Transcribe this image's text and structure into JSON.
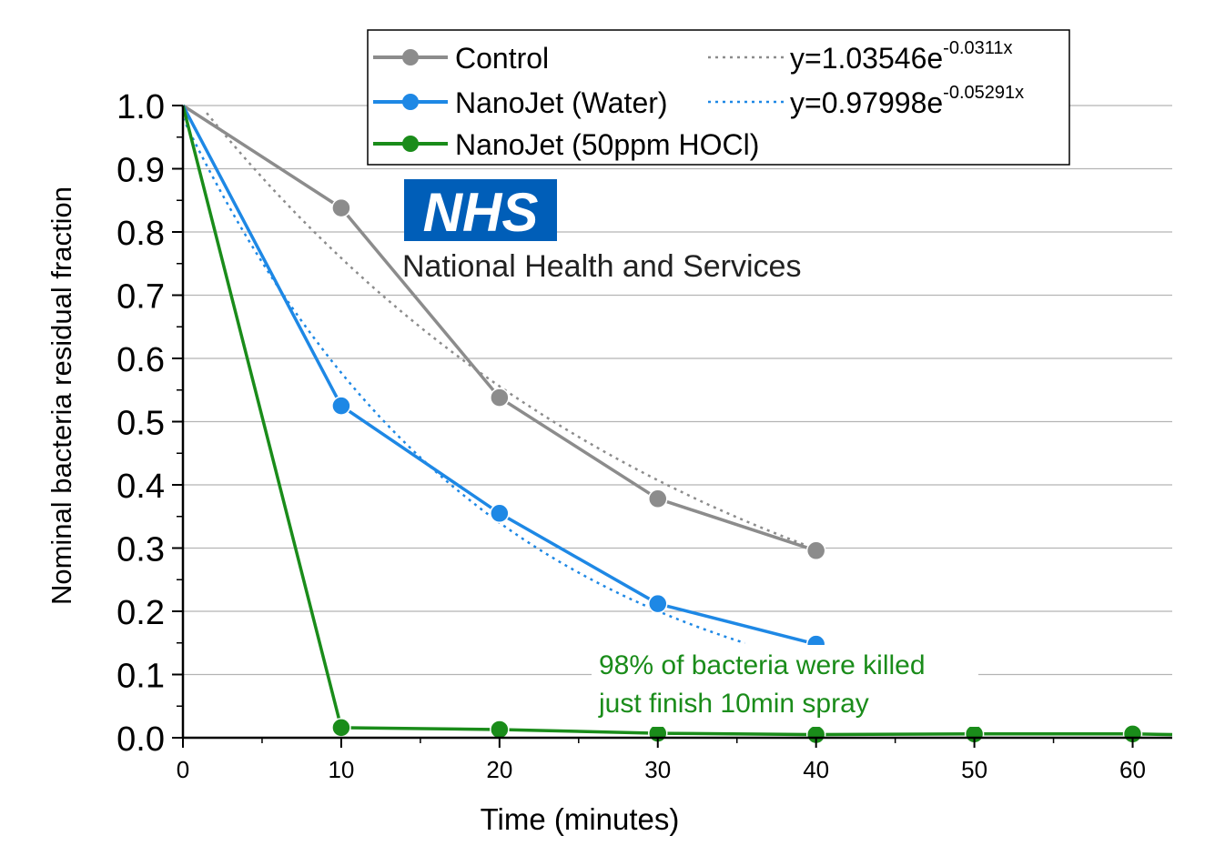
{
  "chart_data": {
    "type": "line",
    "xlabel": "Time (minutes)",
    "ylabel": "Nominal bacteria residual fraction",
    "xlim": [
      0,
      62.5
    ],
    "ylim": [
      0,
      1.0
    ],
    "x_ticks": [
      "0",
      "10",
      "20",
      "30",
      "40",
      "50",
      "60"
    ],
    "y_ticks": [
      "0.0",
      "0.1",
      "0.2",
      "0.3",
      "0.4",
      "0.5",
      "0.6",
      "0.7",
      "0.8",
      "0.9",
      "1.0"
    ],
    "grid": "horizontal",
    "legend_position": "top",
    "series": [
      {
        "name": "Control",
        "color": "#8c8c8c",
        "x": [
          0,
          10,
          20,
          30,
          40
        ],
        "values": [
          1.0,
          0.838,
          0.538,
          0.378,
          0.296
        ]
      },
      {
        "name": "NanoJet (Water)",
        "color": "#1e88e5",
        "x": [
          0,
          10,
          20,
          30,
          40
        ],
        "values": [
          1.0,
          0.525,
          0.355,
          0.212,
          0.148
        ]
      },
      {
        "name": "NanoJet (50ppm HOCl)",
        "color": "#1a8c1a",
        "x": [
          0,
          10,
          20,
          30,
          40,
          50,
          60,
          62.5
        ],
        "values": [
          1.0,
          0.016,
          0.013,
          0.007,
          0.005,
          0.006,
          0.006,
          0.005
        ]
      }
    ],
    "fits": [
      {
        "series": "Control",
        "a": 1.03546,
        "b": -0.0311,
        "x_range": [
          1.5,
          40
        ],
        "label_base": "y=1.03546e",
        "label_exp": "-0.0311x"
      },
      {
        "series": "NanoJet (Water)",
        "a": 0.97998,
        "b": -0.05291,
        "x_range": [
          0,
          35.5
        ],
        "label_base": "y=0.97998e",
        "label_exp": "-0.05291x"
      }
    ],
    "annotation": {
      "line1": "98% of bacteria were killed",
      "line2": "just finish 10min spray",
      "color": "#1a8c1a"
    }
  },
  "logo": {
    "text": "NHS",
    "subtitle": "National Health and Services",
    "color": "#005eb8"
  }
}
